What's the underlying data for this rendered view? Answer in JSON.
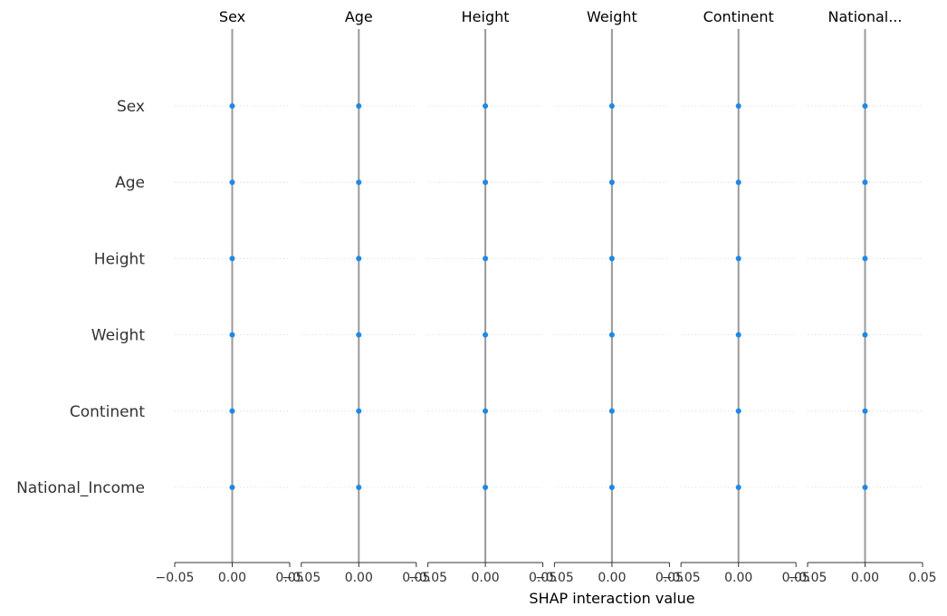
{
  "chart_data": {
    "type": "scatter",
    "title": "",
    "xlabel": "SHAP interaction value",
    "ylabel": "",
    "features": [
      "Sex",
      "Age",
      "Height",
      "Weight",
      "Continent",
      "National_Income"
    ],
    "column_titles": [
      "Sex",
      "Age",
      "Height",
      "Weight",
      "Continent",
      "National..."
    ],
    "xlim": [
      -0.05,
      0.05
    ],
    "x_ticks": [
      -0.05,
      0.0,
      0.05
    ],
    "x_tick_labels": [
      "−0.05",
      "0.00",
      "0.05"
    ],
    "grid": true,
    "legend": "none",
    "point_color": "#1E88E5",
    "zero_line_color": "#999999",
    "points": [
      {
        "row": "Sex",
        "col": "Sex",
        "x": 0.0
      },
      {
        "row": "Sex",
        "col": "Age",
        "x": 0.0
      },
      {
        "row": "Sex",
        "col": "Height",
        "x": 0.0
      },
      {
        "row": "Sex",
        "col": "Weight",
        "x": 0.0
      },
      {
        "row": "Sex",
        "col": "Continent",
        "x": 0.0
      },
      {
        "row": "Sex",
        "col": "National_Income",
        "x": 0.0
      },
      {
        "row": "Age",
        "col": "Sex",
        "x": 0.0
      },
      {
        "row": "Age",
        "col": "Age",
        "x": 0.0
      },
      {
        "row": "Age",
        "col": "Height",
        "x": 0.0
      },
      {
        "row": "Age",
        "col": "Weight",
        "x": 0.0
      },
      {
        "row": "Age",
        "col": "Continent",
        "x": 0.0
      },
      {
        "row": "Age",
        "col": "National_Income",
        "x": 0.0
      },
      {
        "row": "Height",
        "col": "Sex",
        "x": 0.0
      },
      {
        "row": "Height",
        "col": "Age",
        "x": 0.0
      },
      {
        "row": "Height",
        "col": "Height",
        "x": 0.0
      },
      {
        "row": "Height",
        "col": "Weight",
        "x": 0.0
      },
      {
        "row": "Height",
        "col": "Continent",
        "x": 0.0
      },
      {
        "row": "Height",
        "col": "National_Income",
        "x": 0.0
      },
      {
        "row": "Weight",
        "col": "Sex",
        "x": 0.0
      },
      {
        "row": "Weight",
        "col": "Age",
        "x": 0.0
      },
      {
        "row": "Weight",
        "col": "Height",
        "x": 0.0
      },
      {
        "row": "Weight",
        "col": "Weight",
        "x": 0.0
      },
      {
        "row": "Weight",
        "col": "Continent",
        "x": 0.0
      },
      {
        "row": "Weight",
        "col": "National_Income",
        "x": 0.0
      },
      {
        "row": "Continent",
        "col": "Sex",
        "x": 0.0
      },
      {
        "row": "Continent",
        "col": "Age",
        "x": 0.0
      },
      {
        "row": "Continent",
        "col": "Height",
        "x": 0.0
      },
      {
        "row": "Continent",
        "col": "Weight",
        "x": 0.0
      },
      {
        "row": "Continent",
        "col": "Continent",
        "x": 0.0
      },
      {
        "row": "Continent",
        "col": "National_Income",
        "x": 0.0
      },
      {
        "row": "National_Income",
        "col": "Sex",
        "x": 0.0
      },
      {
        "row": "National_Income",
        "col": "Age",
        "x": 0.0
      },
      {
        "row": "National_Income",
        "col": "Height",
        "x": 0.0
      },
      {
        "row": "National_Income",
        "col": "Weight",
        "x": 0.0
      },
      {
        "row": "National_Income",
        "col": "Continent",
        "x": 0.0
      },
      {
        "row": "National_Income",
        "col": "National_Income",
        "x": 0.0
      }
    ]
  }
}
